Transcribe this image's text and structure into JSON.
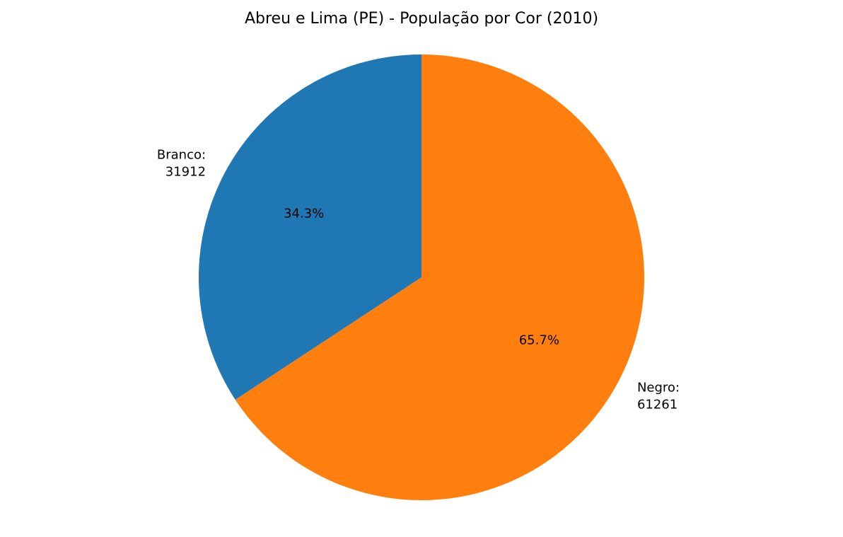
{
  "chart_data": {
    "type": "pie",
    "title": "Abreu e Lima (PE) - População por Cor (2010)",
    "slices": [
      {
        "label": "Branco:",
        "value": 31912,
        "value_text": "31912",
        "percent_text": "34.3%",
        "color": "#1f77b4"
      },
      {
        "label": "Negro:",
        "value": 61261,
        "value_text": "61261",
        "percent_text": "65.7%",
        "color": "#ff7f0e"
      }
    ],
    "start_angle_deg": 90,
    "direction": "counterclockwise",
    "legend": "none"
  }
}
